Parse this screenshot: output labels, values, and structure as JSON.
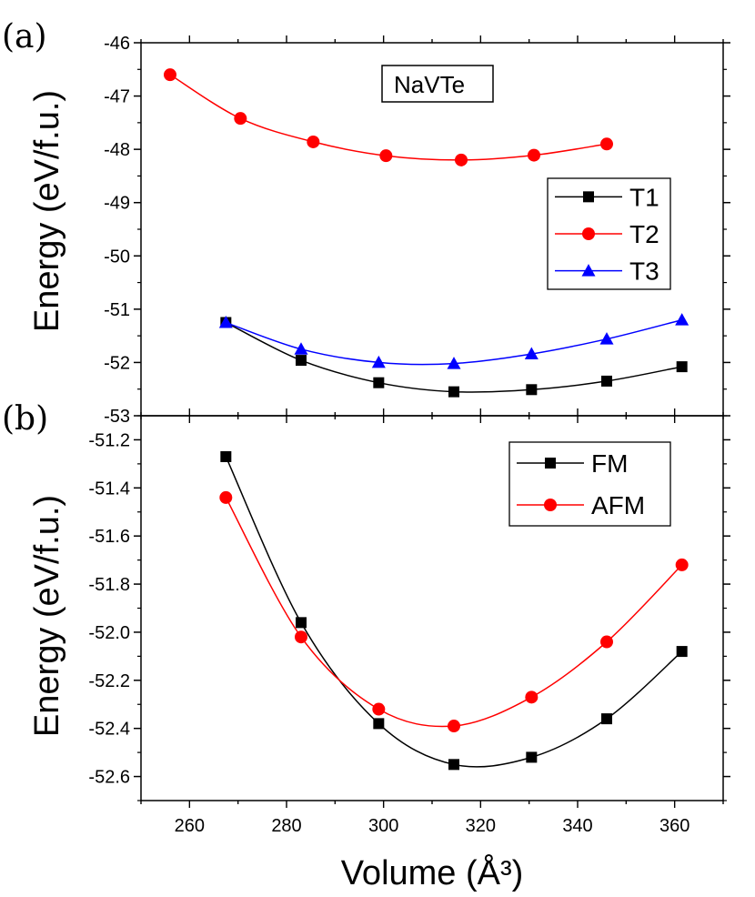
{
  "chart_data": [
    {
      "type": "line",
      "panel_label": "(a)",
      "annotation": "NaVTe",
      "xlabel": "",
      "ylabel": "Energy (eV/f.u.)",
      "xlim": [
        250,
        370
      ],
      "ylim": [
        -53,
        -46
      ],
      "yticks": [
        -46,
        -47,
        -48,
        -49,
        -50,
        -51,
        -52,
        -53
      ],
      "legend_position": "right",
      "series": [
        {
          "name": "T1",
          "marker": "square",
          "color": "#000000",
          "x": [
            267.5,
            283,
            299,
            314.5,
            330.5,
            346,
            361.5
          ],
          "y": [
            -51.25,
            -51.96,
            -52.38,
            -52.55,
            -52.51,
            -52.35,
            -52.08
          ]
        },
        {
          "name": "T2",
          "marker": "circle",
          "color": "#ff0000",
          "x": [
            256,
            270.5,
            285.5,
            300.5,
            316,
            331,
            346
          ],
          "y": [
            -46.6,
            -47.42,
            -47.86,
            -48.12,
            -48.2,
            -48.11,
            -47.9
          ]
        },
        {
          "name": "T3",
          "marker": "triangle",
          "color": "#0000ff",
          "x": [
            267.5,
            283,
            299,
            314.5,
            330.5,
            346,
            361.5
          ],
          "y": [
            -51.25,
            -51.75,
            -52.0,
            -52.02,
            -51.84,
            -51.56,
            -51.2
          ]
        }
      ]
    },
    {
      "type": "line",
      "panel_label": "(b)",
      "xlabel": "Volume (Å³)",
      "ylabel": "Energy (eV/f.u.)",
      "xlim": [
        250,
        370
      ],
      "ylim": [
        -52.7,
        -51.1
      ],
      "xticks": [
        260,
        280,
        300,
        320,
        340,
        360
      ],
      "yticks": [
        -51.2,
        -51.4,
        -51.6,
        -51.8,
        -52.0,
        -52.2,
        -52.4,
        -52.6
      ],
      "ytick_labels": [
        "-51.2",
        "-51.4",
        "-51.6",
        "-51.8",
        "-52.0",
        "-52.2",
        "-52.4",
        "-52.6"
      ],
      "legend_position": "top-right",
      "series": [
        {
          "name": "FM",
          "marker": "square",
          "color": "#000000",
          "x": [
            267.5,
            283,
            299,
            314.5,
            330.5,
            346,
            361.5
          ],
          "y": [
            -51.27,
            -51.96,
            -52.38,
            -52.55,
            -52.52,
            -52.36,
            -52.08
          ]
        },
        {
          "name": "AFM",
          "marker": "circle",
          "color": "#ff0000",
          "x": [
            267.5,
            283,
            299,
            314.5,
            330.5,
            346,
            361.5
          ],
          "y": [
            -51.44,
            -52.02,
            -52.32,
            -52.39,
            -52.27,
            -52.04,
            -51.72
          ]
        }
      ]
    }
  ]
}
